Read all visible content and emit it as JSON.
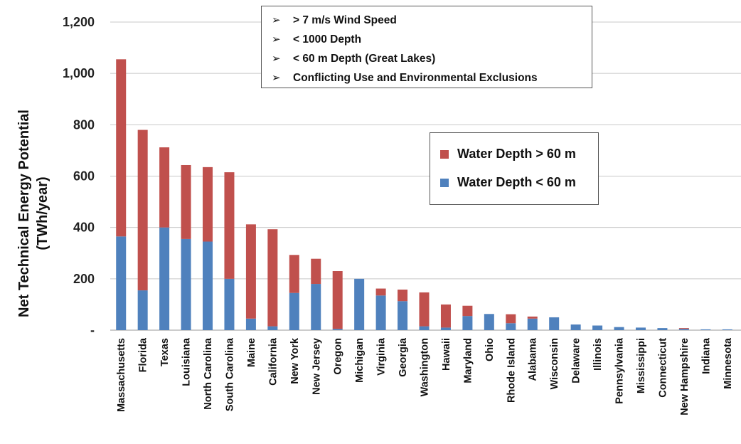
{
  "chart_data": {
    "type": "bar",
    "stacked": true,
    "ylabel_line1": "Net Technical Energy Potential",
    "ylabel_line2": "(TWh/year)",
    "ylim": [
      0,
      1200
    ],
    "yticks": [
      {
        "value": 0,
        "label": "-"
      },
      {
        "value": 200,
        "label": "200"
      },
      {
        "value": 400,
        "label": "400"
      },
      {
        "value": 600,
        "label": "600"
      },
      {
        "value": 800,
        "label": "800"
      },
      {
        "value": 1000,
        "label": "1,000"
      },
      {
        "value": 1200,
        "label": "1,200"
      }
    ],
    "grid": true,
    "legend_position": "right-center",
    "categories": [
      "Massachusetts",
      "Florida",
      "Texas",
      "Louisiana",
      "North Carolina",
      "South Carolina",
      "Maine",
      "California",
      "New York",
      "New Jersey",
      "Oregon",
      "Michigan",
      "Virginia",
      "Georgia",
      "Washington",
      "Hawaii",
      "Maryland",
      "Ohio",
      "Rhode Island",
      "Alabama",
      "Wisconsin",
      "Delaware",
      "Illinois",
      "Pennsylvania",
      "Mississippi",
      "Connecticut",
      "New Hampshire",
      "Indiana",
      "Minnesota"
    ],
    "series": [
      {
        "name": "Water Depth < 60 m",
        "color": "#4f81bd",
        "values": [
          365,
          155,
          400,
          355,
          345,
          200,
          45,
          15,
          145,
          180,
          5,
          200,
          135,
          113,
          15,
          10,
          55,
          63,
          27,
          45,
          50,
          22,
          18,
          12,
          10,
          8,
          5,
          3,
          3
        ]
      },
      {
        "name": "Water Depth > 60 m",
        "color": "#c0504d",
        "values": [
          690,
          625,
          312,
          288,
          290,
          415,
          367,
          378,
          148,
          98,
          225,
          0,
          27,
          45,
          132,
          90,
          40,
          0,
          35,
          8,
          0,
          0,
          0,
          0,
          0,
          0,
          3,
          0,
          0
        ]
      }
    ],
    "notes": [
      "> 7 m/s Wind Speed",
      "< 1000 Depth",
      "< 60 m Depth (Great Lakes)",
      "Conflicting Use and Environmental Exclusions"
    ]
  },
  "icons": {
    "bullet": "arrowhead-icon"
  }
}
